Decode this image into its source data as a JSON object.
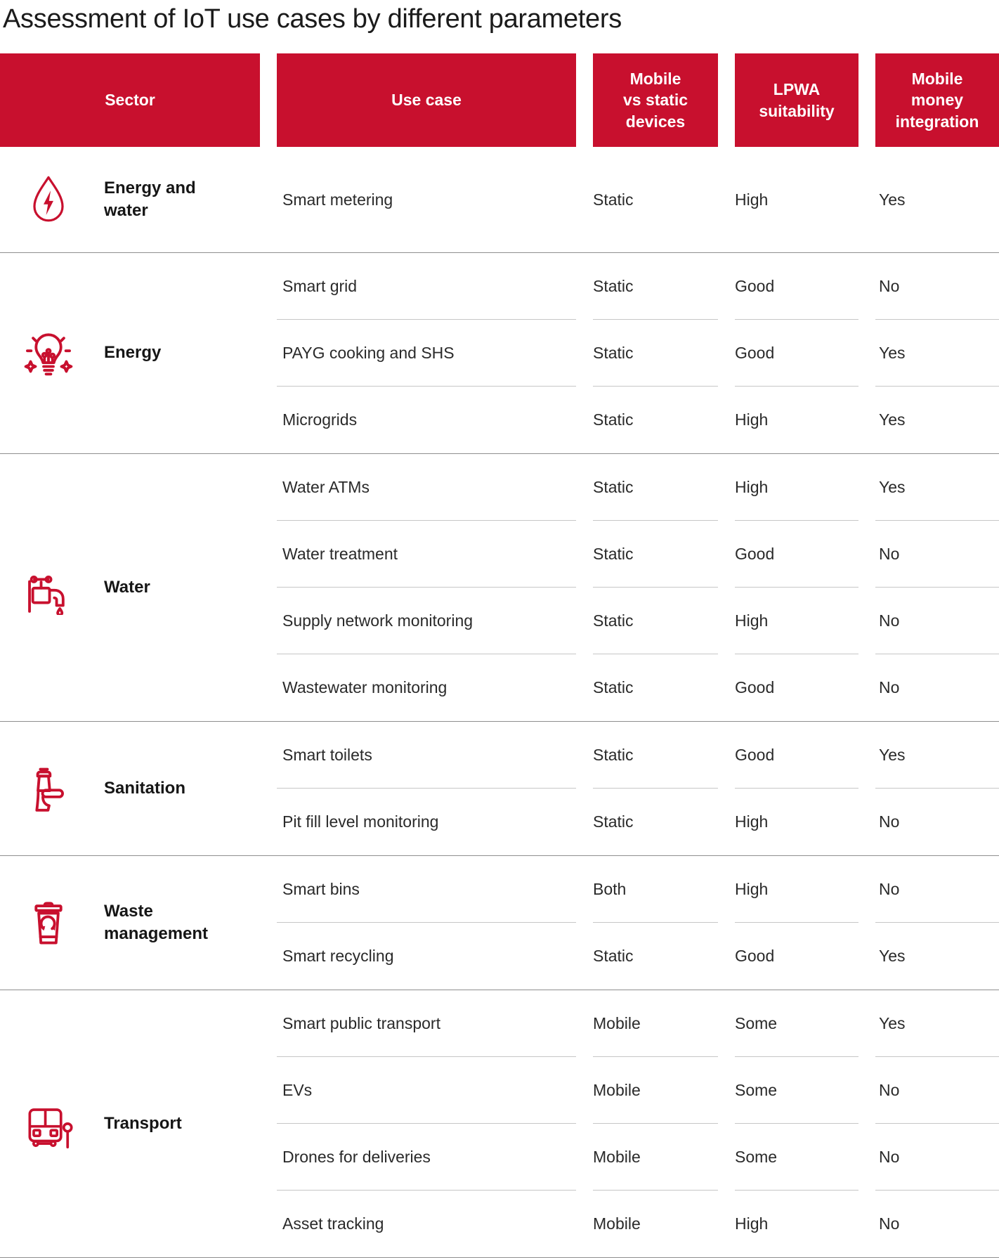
{
  "title": "Assessment of IoT use cases by different parameters",
  "colors": {
    "accent": "#C8102E",
    "header_text": "#FFFFFF",
    "body_text": "#2A2A2A",
    "section_divider": "#8E8E8E",
    "row_divider": "#C6C6C6"
  },
  "table": {
    "columns": [
      "Sector",
      "Use case",
      "Mobile\nvs static\ndevices",
      "LPWA\nsuitability",
      "Mobile\nmoney\nintegration"
    ],
    "sections": [
      {
        "sector": "Energy and water",
        "icon": "water-drop-bolt-icon",
        "rows": [
          {
            "use_case": "Smart metering",
            "mobile_vs_static": "Static",
            "lpwa_suitability": "High",
            "mobile_money": "Yes"
          }
        ]
      },
      {
        "sector": "Energy",
        "icon": "lightbulb-icon",
        "rows": [
          {
            "use_case": "Smart grid",
            "mobile_vs_static": "Static",
            "lpwa_suitability": "Good",
            "mobile_money": "No"
          },
          {
            "use_case": "PAYG cooking and SHS",
            "mobile_vs_static": "Static",
            "lpwa_suitability": "Good",
            "mobile_money": "Yes"
          },
          {
            "use_case": "Microgrids",
            "mobile_vs_static": "Static",
            "lpwa_suitability": "High",
            "mobile_money": "Yes"
          }
        ]
      },
      {
        "sector": "Water",
        "icon": "water-tap-icon",
        "rows": [
          {
            "use_case": "Water ATMs",
            "mobile_vs_static": "Static",
            "lpwa_suitability": "High",
            "mobile_money": "Yes"
          },
          {
            "use_case": "Water treatment",
            "mobile_vs_static": "Static",
            "lpwa_suitability": "Good",
            "mobile_money": "No"
          },
          {
            "use_case": "Supply network monitoring",
            "mobile_vs_static": "Static",
            "lpwa_suitability": "High",
            "mobile_money": "No"
          },
          {
            "use_case": "Wastewater monitoring",
            "mobile_vs_static": "Static",
            "lpwa_suitability": "Good",
            "mobile_money": "No"
          }
        ]
      },
      {
        "sector": "Sanitation",
        "icon": "toilet-icon",
        "rows": [
          {
            "use_case": "Smart toilets",
            "mobile_vs_static": "Static",
            "lpwa_suitability": "Good",
            "mobile_money": "Yes"
          },
          {
            "use_case": "Pit fill level monitoring",
            "mobile_vs_static": "Static",
            "lpwa_suitability": "High",
            "mobile_money": "No"
          }
        ]
      },
      {
        "sector": "Waste management",
        "icon": "recycling-bin-icon",
        "rows": [
          {
            "use_case": "Smart bins",
            "mobile_vs_static": "Both",
            "lpwa_suitability": "High",
            "mobile_money": "No"
          },
          {
            "use_case": "Smart recycling",
            "mobile_vs_static": "Static",
            "lpwa_suitability": "Good",
            "mobile_money": "Yes"
          }
        ]
      },
      {
        "sector": "Transport",
        "icon": "bus-icon",
        "rows": [
          {
            "use_case": "Smart public transport",
            "mobile_vs_static": "Mobile",
            "lpwa_suitability": "Some",
            "mobile_money": "Yes"
          },
          {
            "use_case": "EVs",
            "mobile_vs_static": "Mobile",
            "lpwa_suitability": "Some",
            "mobile_money": "No"
          },
          {
            "use_case": "Drones for deliveries",
            "mobile_vs_static": "Mobile",
            "lpwa_suitability": "Some",
            "mobile_money": "No"
          },
          {
            "use_case": "Asset tracking",
            "mobile_vs_static": "Mobile",
            "lpwa_suitability": "High",
            "mobile_money": "No"
          }
        ]
      }
    ]
  }
}
